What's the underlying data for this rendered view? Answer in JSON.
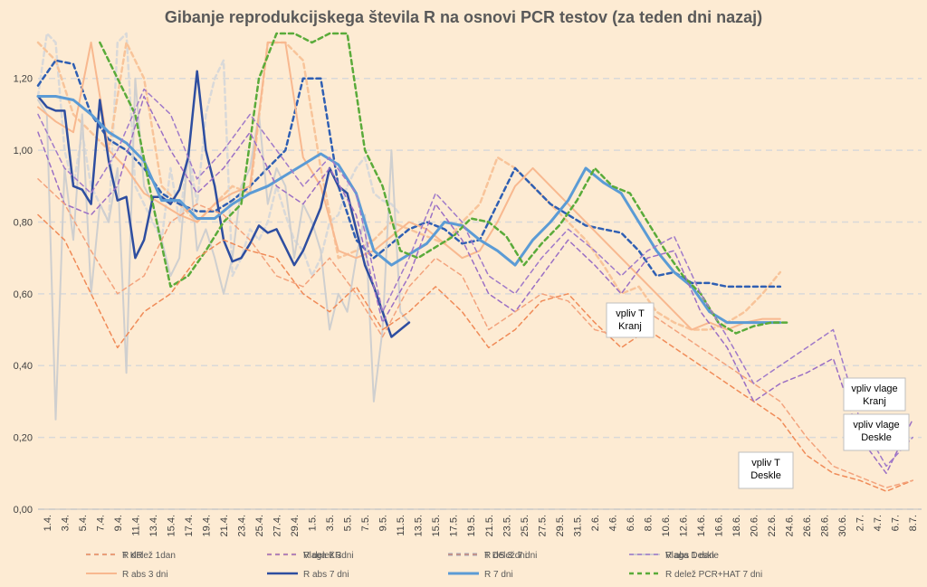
{
  "chart_data": {
    "type": "line",
    "title": "Gibanje reprodukcijskega števila R na osnovi PCR testov (za teden dni nazaj)",
    "ylim": [
      0,
      1.3
    ],
    "y_ticks": [
      "0,00",
      "0,20",
      "0,40",
      "0,60",
      "0,80",
      "1,00",
      "1,20"
    ],
    "y_tick_values": [
      0,
      0.2,
      0.4,
      0.6,
      0.8,
      1.0,
      1.2
    ],
    "x_ticks": [
      "1.4.",
      "3.4.",
      "5.4.",
      "7.4.",
      "9.4.",
      "11.4.",
      "13.4.",
      "15.4.",
      "17.4.",
      "19.4.",
      "21.4.",
      "23.4.",
      "25.4.",
      "27.4.",
      "29.4.",
      "1.5.",
      "3.5.",
      "5.5.",
      "7.5.",
      "9.5.",
      "11.5.",
      "13.5.",
      "15.5.",
      "17.5.",
      "19.5.",
      "21.5.",
      "23.5.",
      "25.5.",
      "27.5.",
      "29.5.",
      "31.5.",
      "2.6.",
      "4.6.",
      "6.6.",
      "8.6.",
      "10.6.",
      "12.6.",
      "14.6.",
      "16.6.",
      "18.6.",
      "20.6.",
      "22.6.",
      "24.6.",
      "26.6.",
      "28.6.",
      "30.6.",
      "2.7.",
      "4.7.",
      "6.7.",
      "8.7."
    ],
    "grid": true,
    "legend_position": "bottom",
    "series": [
      {
        "name": "R delež 1dan",
        "color": "#d9d9d9",
        "style": "dashed",
        "width": 2.5,
        "x_index": [
          0,
          1,
          2,
          3,
          4,
          5,
          6,
          7,
          8,
          9,
          10,
          11,
          12,
          13,
          14,
          15,
          16,
          17,
          18,
          19,
          20,
          21,
          22,
          23,
          24,
          25,
          26,
          27,
          28,
          29,
          30,
          31,
          32,
          33,
          34,
          35,
          36,
          37,
          38,
          39,
          40,
          41
        ],
        "values": [
          1.15,
          1.35,
          1.3,
          1.0,
          0.9,
          1.05,
          0.9,
          0.85,
          0.8,
          1.3,
          1.4,
          0.9,
          0.85,
          0.8,
          0.75,
          0.95,
          0.8,
          1.0,
          0.85,
          1.1,
          1.2,
          1.25,
          0.65,
          0.7,
          0.78,
          0.75,
          0.8,
          0.9,
          0.82,
          0.75,
          0.72,
          0.65,
          0.7,
          0.8,
          0.82,
          0.9,
          0.95,
          0.98,
          0.88,
          0.86,
          0.85,
          0.82
        ]
      },
      {
        "name": "R delež 3dni",
        "color": "#f8c49a",
        "style": "dashed",
        "width": 2.5,
        "x_index": [
          0,
          2,
          4,
          6,
          8,
          10,
          12,
          14,
          16,
          18,
          20,
          22,
          24,
          26,
          28,
          30,
          32,
          34,
          36,
          38,
          40,
          42,
          44,
          46,
          48,
          50,
          52,
          54,
          56,
          58,
          60,
          62,
          64,
          66,
          68,
          70,
          72,
          74,
          76,
          78,
          80,
          82,
          84
        ],
        "values": [
          1.3,
          1.25,
          1.1,
          1.05,
          1.0,
          1.3,
          1.2,
          0.9,
          0.85,
          0.8,
          0.85,
          0.9,
          0.88,
          1.3,
          1.3,
          1.25,
          0.95,
          0.7,
          0.72,
          0.75,
          0.8,
          0.78,
          0.76,
          0.74,
          0.8,
          0.85,
          0.98,
          0.95,
          0.9,
          0.85,
          0.8,
          0.75,
          0.68,
          0.6,
          0.62,
          0.55,
          0.52,
          0.5,
          0.5,
          0.52,
          0.55,
          0.6,
          0.66
        ]
      },
      {
        "name": "R delež 7 dni",
        "color": "#2f5fb3",
        "style": "dashed",
        "width": 2.5,
        "x_index": [
          0,
          2,
          4,
          6,
          8,
          10,
          12,
          14,
          16,
          18,
          20,
          22,
          24,
          26,
          28,
          30,
          32,
          34,
          36,
          38,
          40,
          42,
          44,
          46,
          48,
          50,
          52,
          54,
          56,
          58,
          60,
          62,
          64,
          66,
          68,
          70,
          72,
          74,
          76,
          78,
          80,
          82,
          84
        ],
        "values": [
          1.18,
          1.25,
          1.24,
          1.1,
          1.03,
          1.0,
          0.95,
          0.88,
          0.85,
          0.83,
          0.83,
          0.86,
          0.9,
          0.95,
          1.0,
          1.2,
          1.2,
          0.9,
          0.75,
          0.7,
          0.74,
          0.78,
          0.8,
          0.78,
          0.74,
          0.75,
          0.85,
          0.95,
          0.9,
          0.85,
          0.82,
          0.79,
          0.78,
          0.77,
          0.72,
          0.65,
          0.66,
          0.63,
          0.63,
          0.62,
          0.62,
          0.62,
          0.62
        ]
      },
      {
        "name": "R abs 1 dan",
        "color": "#cfcfcf",
        "style": "solid",
        "width": 2,
        "x_index": [
          0,
          1,
          2,
          3,
          4,
          5,
          6,
          7,
          8,
          9,
          10,
          11,
          12,
          13,
          14,
          15,
          16,
          17,
          18,
          19,
          20,
          21,
          22,
          23,
          24,
          25,
          26,
          27,
          28,
          29,
          30,
          31,
          32,
          33,
          34,
          35,
          36,
          37,
          38,
          39,
          40,
          41,
          42
        ],
        "values": [
          1.14,
          1.1,
          0.25,
          0.95,
          0.75,
          1.1,
          0.6,
          0.85,
          0.8,
          0.95,
          0.38,
          1.2,
          0.9,
          0.85,
          0.75,
          0.65,
          0.7,
          1.0,
          0.72,
          0.78,
          0.7,
          0.6,
          0.7,
          0.9,
          0.95,
          1.1,
          0.85,
          0.95,
          0.9,
          0.7,
          0.85,
          0.8,
          0.72,
          0.5,
          0.6,
          0.55,
          0.7,
          0.82,
          0.3,
          0.5,
          1.0,
          0.55,
          0.52
        ]
      },
      {
        "name": "R abs 3 dni",
        "color": "#f8b88f",
        "style": "solid",
        "width": 2,
        "x_index": [
          0,
          2,
          4,
          6,
          8,
          10,
          12,
          14,
          16,
          18,
          20,
          22,
          24,
          26,
          28,
          30,
          32,
          34,
          36,
          38,
          40,
          42,
          44,
          46,
          48,
          50,
          52,
          54,
          56,
          58,
          60,
          62,
          64,
          66,
          68,
          70,
          72,
          74,
          76,
          78,
          80,
          82,
          84
        ],
        "values": [
          1.12,
          1.08,
          1.05,
          1.3,
          1.0,
          0.95,
          0.88,
          0.85,
          0.82,
          0.8,
          0.85,
          0.88,
          0.9,
          1.3,
          1.3,
          0.98,
          0.9,
          0.72,
          0.7,
          0.72,
          0.76,
          0.8,
          0.78,
          0.74,
          0.7,
          0.72,
          0.8,
          0.9,
          0.95,
          0.9,
          0.85,
          0.8,
          0.75,
          0.7,
          0.65,
          0.6,
          0.55,
          0.5,
          0.52,
          0.5,
          0.52,
          0.53,
          0.53
        ]
      },
      {
        "name": "R abs 7 dni",
        "color": "#2e4ea0",
        "style": "solid",
        "width": 2.5,
        "x_index": [
          0,
          1,
          2,
          3,
          4,
          5,
          6,
          7,
          8,
          9,
          10,
          11,
          12,
          13,
          14,
          15,
          16,
          17,
          18,
          19,
          20,
          21,
          22,
          23,
          24,
          25,
          26,
          27,
          28,
          29,
          30,
          31,
          32,
          33,
          34,
          35,
          36,
          37,
          38,
          39,
          40,
          41,
          42
        ],
        "values": [
          1.15,
          1.12,
          1.11,
          1.11,
          0.9,
          0.89,
          0.85,
          1.14,
          0.97,
          0.86,
          0.87,
          0.7,
          0.75,
          0.87,
          0.87,
          0.85,
          0.89,
          0.98,
          1.22,
          1.0,
          0.9,
          0.75,
          0.69,
          0.7,
          0.74,
          0.79,
          0.77,
          0.78,
          0.73,
          0.68,
          0.72,
          0.78,
          0.84,
          0.95,
          0.9,
          0.88,
          0.78,
          0.68,
          0.62,
          0.55,
          0.48,
          0.5,
          0.52
        ]
      },
      {
        "name": "R 7 dni",
        "color": "#5b9bd5",
        "style": "solid",
        "width": 3,
        "x_index": [
          0,
          2,
          4,
          6,
          8,
          10,
          12,
          14,
          16,
          18,
          20,
          22,
          24,
          26,
          28,
          30,
          32,
          34,
          36,
          38,
          40,
          42,
          44,
          46,
          48,
          50,
          52,
          54,
          56,
          58,
          60,
          62,
          64,
          66,
          68,
          70,
          72,
          74,
          76,
          78,
          80,
          82,
          84
        ],
        "values": [
          1.15,
          1.15,
          1.14,
          1.1,
          1.05,
          1.02,
          0.97,
          0.86,
          0.86,
          0.81,
          0.81,
          0.85,
          0.88,
          0.9,
          0.93,
          0.96,
          0.99,
          0.96,
          0.88,
          0.72,
          0.68,
          0.71,
          0.74,
          0.8,
          0.79,
          0.75,
          0.72,
          0.68,
          0.75,
          0.8,
          0.86,
          0.95,
          0.91,
          0.88,
          0.8,
          0.72,
          0.66,
          0.62,
          0.55,
          0.52,
          0.52,
          0.52,
          0.52
        ]
      },
      {
        "name": "R delež PCR+HAT 7 dni",
        "color": "#5aab3a",
        "style": "dashed",
        "width": 2.5,
        "x_index": [
          7,
          9,
          11,
          13,
          15,
          17,
          19,
          21,
          23,
          25,
          27,
          29,
          31,
          33,
          35,
          37,
          39,
          41,
          43,
          45,
          47,
          49,
          51,
          53,
          55,
          57,
          59,
          61,
          63,
          65,
          67,
          69,
          71,
          73,
          75,
          77,
          79,
          81,
          83,
          85
        ],
        "values": [
          1.3,
          1.2,
          1.1,
          0.85,
          0.62,
          0.65,
          0.72,
          0.8,
          0.85,
          1.2,
          1.35,
          1.35,
          1.3,
          1.35,
          1.4,
          1.0,
          0.9,
          0.72,
          0.7,
          0.73,
          0.76,
          0.81,
          0.8,
          0.76,
          0.68,
          0.74,
          0.79,
          0.86,
          0.95,
          0.9,
          0.88,
          0.8,
          0.72,
          0.65,
          0.6,
          0.52,
          0.49,
          0.51,
          0.52,
          0.52
        ]
      },
      {
        "name": "T KR",
        "color": "#f08b58",
        "style": "dashed",
        "width": 1.5,
        "x_index": [
          0,
          3,
          6,
          9,
          12,
          15,
          18,
          21,
          24,
          27,
          30,
          33,
          36,
          39,
          42,
          45,
          48,
          51,
          54,
          57,
          60,
          63,
          66,
          69,
          72,
          75,
          78,
          81,
          84,
          87,
          90,
          93,
          96,
          99
        ],
        "values": [
          0.82,
          0.75,
          0.6,
          0.45,
          0.55,
          0.6,
          0.7,
          0.75,
          0.72,
          0.7,
          0.6,
          0.55,
          0.62,
          0.5,
          0.55,
          0.62,
          0.55,
          0.45,
          0.5,
          0.58,
          0.6,
          0.52,
          0.45,
          0.5,
          0.45,
          0.4,
          0.35,
          0.3,
          0.25,
          0.15,
          0.1,
          0.08,
          0.05,
          0.08
        ]
      },
      {
        "name": "Vlaga KR",
        "color": "#9b6fc4",
        "style": "dashed",
        "width": 1.5,
        "x_index": [
          0,
          3,
          6,
          9,
          12,
          15,
          18,
          21,
          24,
          27,
          30,
          33,
          36,
          39,
          42,
          45,
          48,
          51,
          54,
          57,
          60,
          63,
          66,
          69,
          72,
          75,
          78,
          81,
          84,
          87,
          90,
          93,
          96,
          99
        ],
        "values": [
          1.05,
          0.85,
          0.82,
          0.9,
          1.15,
          1.0,
          0.88,
          0.95,
          1.05,
          0.9,
          0.85,
          0.95,
          0.82,
          0.52,
          0.65,
          0.85,
          0.75,
          0.6,
          0.55,
          0.65,
          0.75,
          0.68,
          0.6,
          0.7,
          0.72,
          0.55,
          0.45,
          0.3,
          0.35,
          0.38,
          0.42,
          0.2,
          0.1,
          0.25
        ]
      },
      {
        "name": "T DS 3 dni",
        "color": "#f3a37d",
        "style": "dashed",
        "width": 1.5,
        "x_index": [
          0,
          3,
          6,
          9,
          12,
          15,
          18,
          21,
          24,
          27,
          30,
          33,
          36,
          39,
          42,
          45,
          48,
          51,
          54,
          57,
          60,
          63,
          66,
          69,
          72,
          75,
          78,
          81,
          84,
          87,
          90,
          93,
          96,
          99
        ],
        "values": [
          0.92,
          0.85,
          0.72,
          0.6,
          0.65,
          0.8,
          0.85,
          0.82,
          0.75,
          0.65,
          0.62,
          0.7,
          0.6,
          0.48,
          0.62,
          0.7,
          0.65,
          0.5,
          0.55,
          0.6,
          0.58,
          0.5,
          0.48,
          0.55,
          0.5,
          0.45,
          0.4,
          0.35,
          0.3,
          0.2,
          0.12,
          0.09,
          0.06,
          0.08
        ]
      },
      {
        "name": "Vlaga Deskle",
        "color": "#a07ac9",
        "style": "dashed",
        "width": 1.5,
        "x_index": [
          0,
          3,
          6,
          9,
          12,
          15,
          18,
          21,
          24,
          27,
          30,
          33,
          36,
          39,
          42,
          45,
          48,
          51,
          54,
          57,
          60,
          63,
          66,
          69,
          72,
          75,
          78,
          81,
          84,
          87,
          90,
          93,
          96,
          99
        ],
        "values": [
          1.1,
          0.95,
          0.88,
          1.0,
          1.17,
          1.1,
          0.92,
          1.0,
          1.1,
          1.0,
          0.9,
          0.98,
          0.88,
          0.55,
          0.7,
          0.88,
          0.8,
          0.65,
          0.6,
          0.7,
          0.78,
          0.72,
          0.65,
          0.72,
          0.76,
          0.6,
          0.48,
          0.35,
          0.4,
          0.45,
          0.5,
          0.25,
          0.12,
          0.2
        ]
      }
    ],
    "annotations": [
      {
        "lines": [
          "vpliv T",
          "Kranj"
        ]
      },
      {
        "lines": [
          "vpliv T",
          "Deskle"
        ]
      },
      {
        "lines": [
          "vpliv vlage",
          "Kranj"
        ]
      },
      {
        "lines": [
          "vpliv vlage",
          "Deskle"
        ]
      }
    ]
  }
}
